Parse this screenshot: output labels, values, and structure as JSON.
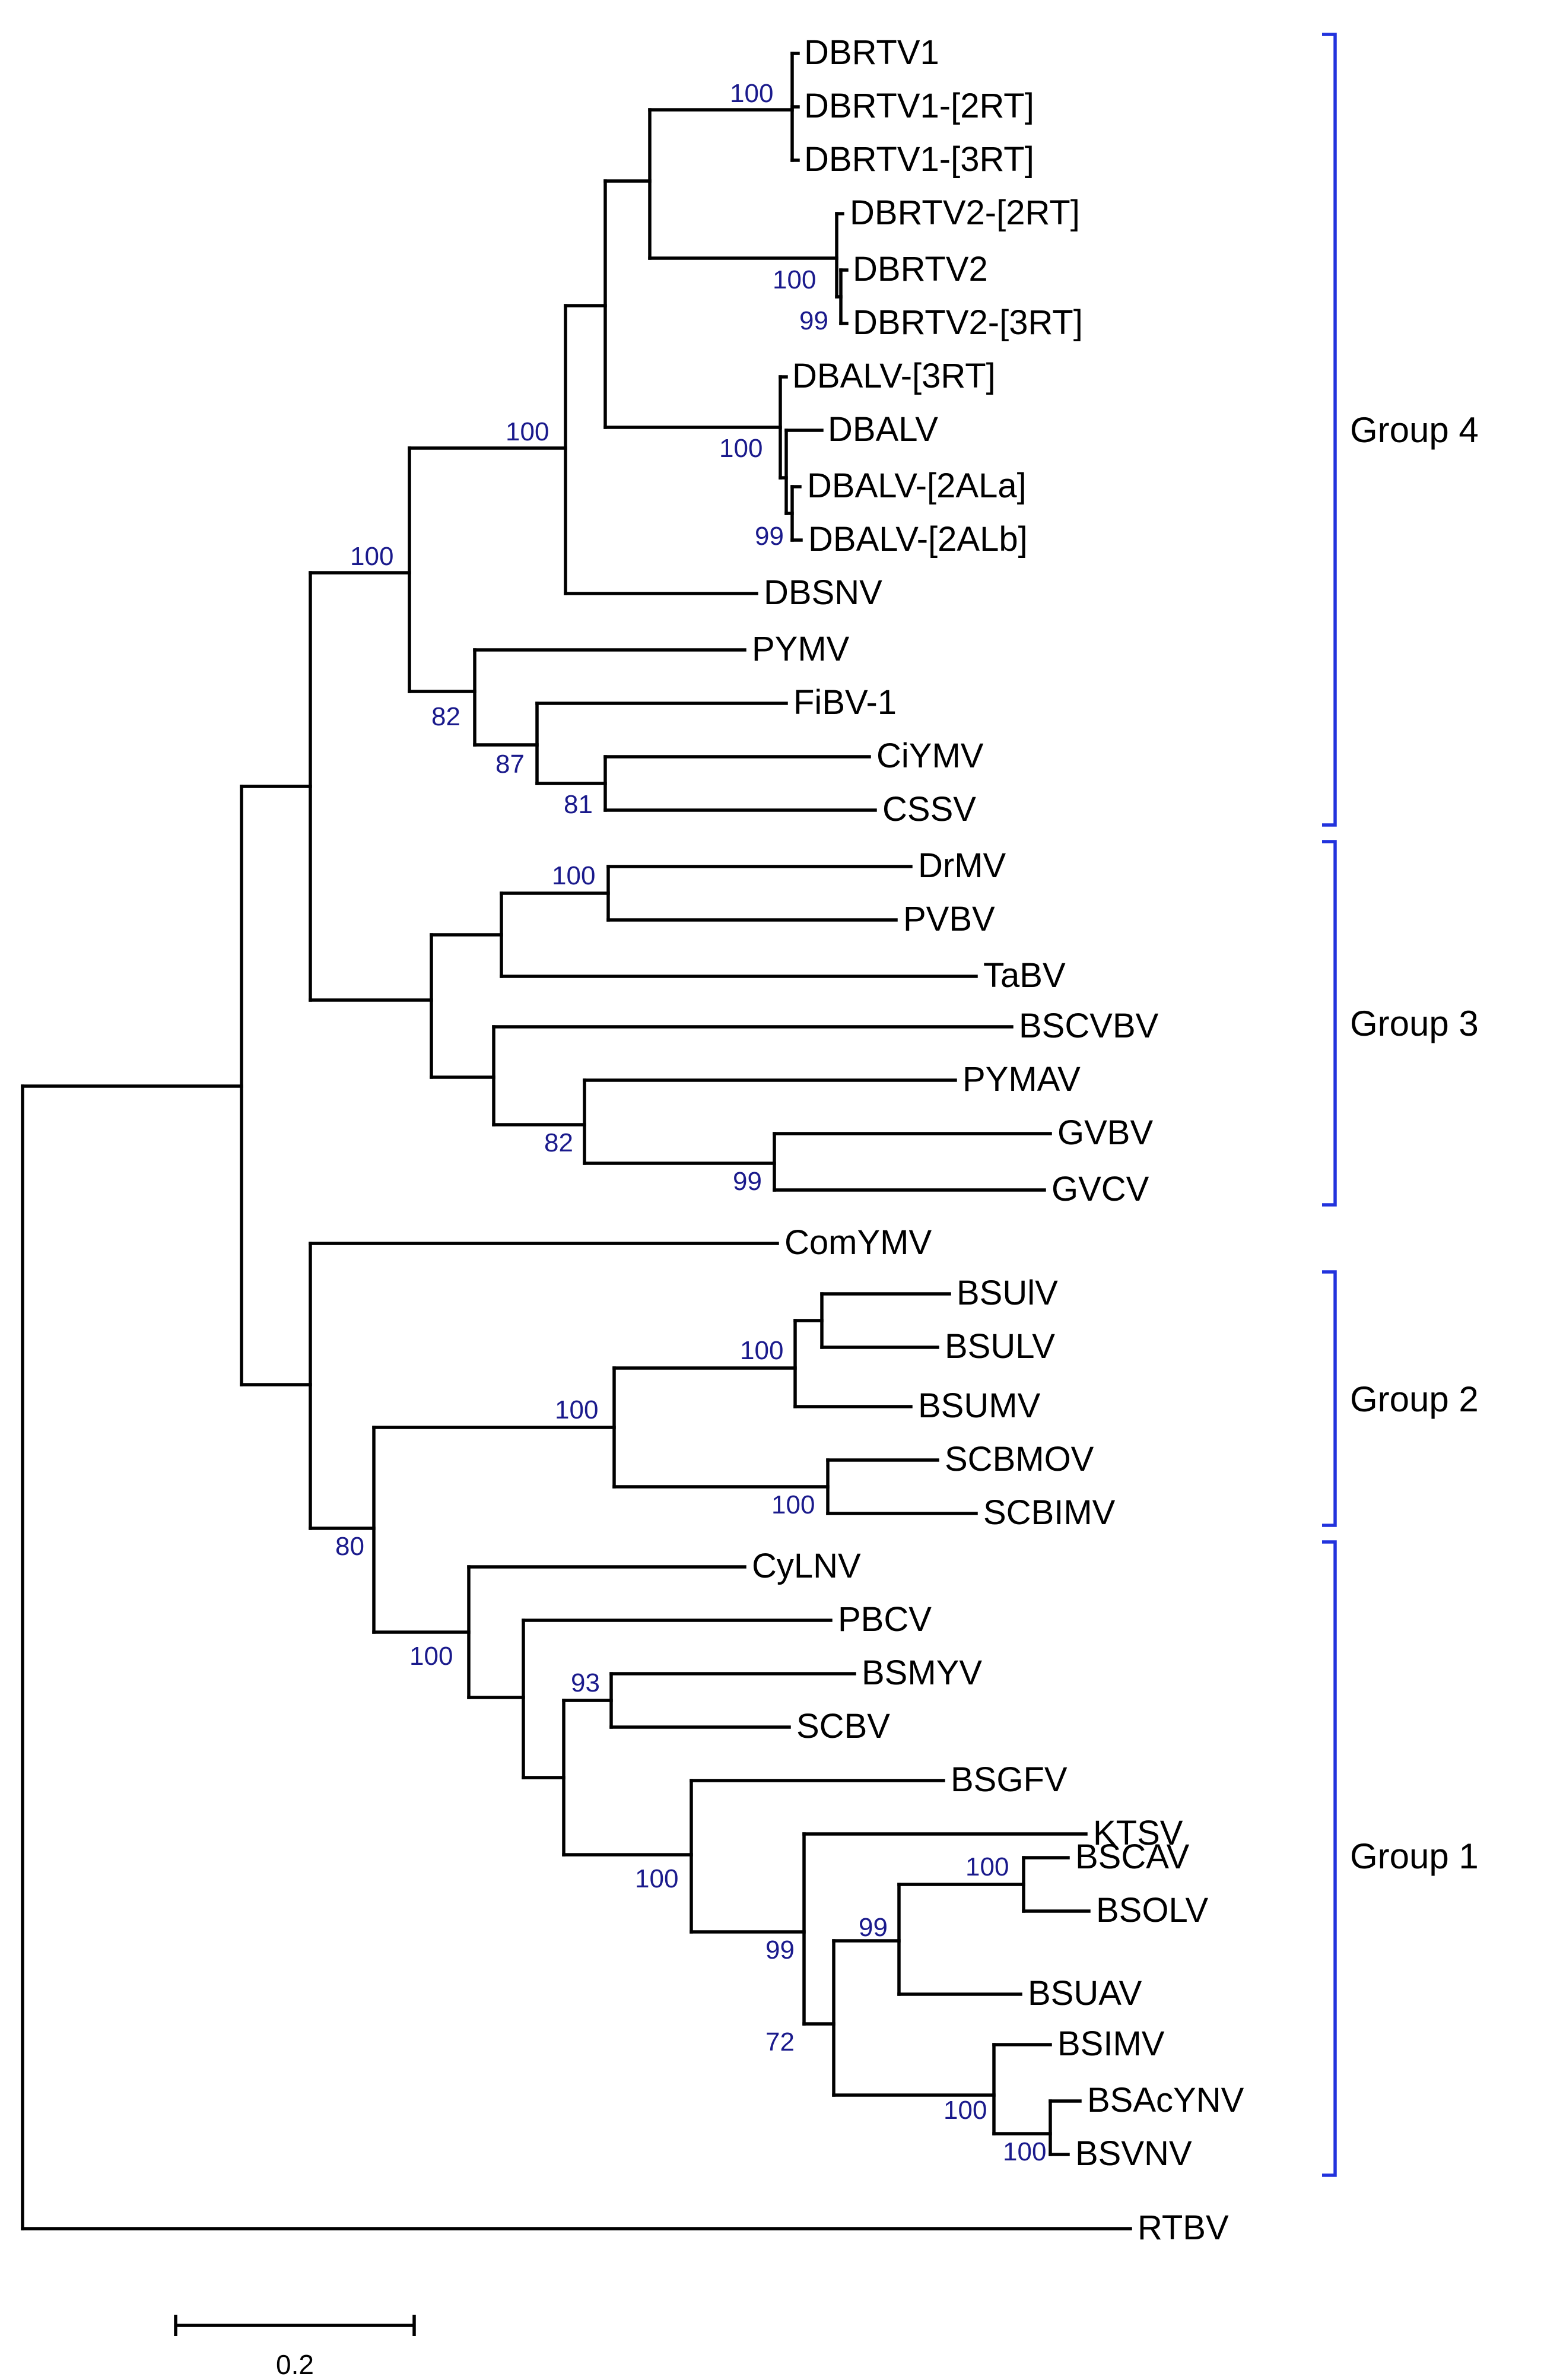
{
  "figure": {
    "type": "phylogenetic-tree",
    "support_color": "#1a1a8c",
    "bracket_color": "#2233dd",
    "line_color": "#000000"
  },
  "leaves": {
    "DBRTV1": "DBRTV1",
    "DBRTV1_2RT": "DBRTV1-[2RT]",
    "DBRTV1_3RT": "DBRTV1-[3RT]",
    "DBRTV2_2RT": "DBRTV2-[2RT]",
    "DBRTV2": "DBRTV2",
    "DBRTV2_3RT": "DBRTV2-[3RT]",
    "DBALV_3RT": "DBALV-[3RT]",
    "DBALV": "DBALV",
    "DBALV_2ALa": "DBALV-[2ALa]",
    "DBALV_2ALb": "DBALV-[2ALb]",
    "DBSNV": "DBSNV",
    "PYMV": "PYMV",
    "FiBV1": "FiBV-1",
    "CiYMV": "CiYMV",
    "CSSV": "CSSV",
    "DrMV": "DrMV",
    "PVBV": "PVBV",
    "TaBV": "TaBV",
    "BSCVBV": "BSCVBV",
    "PYMAV": "PYMAV",
    "GVBV": "GVBV",
    "GVCV": "GVCV",
    "ComYMV": "ComYMV",
    "BSUIV": "BSUlV",
    "BSULV": "BSULV",
    "BSUMV": "BSUMV",
    "SCBMOV": "SCBMOV",
    "SCBIMV": "SCBIMV",
    "CyLNV": "CyLNV",
    "PBCV": "PBCV",
    "BSMYV": "BSMYV",
    "SCBV": "SCBV",
    "BSGFV": "BSGFV",
    "KTSV": "KTSV",
    "BSCAV": "BSCAV",
    "BSOLV": "BSOLV",
    "BSUAV": "BSUAV",
    "BSIMV": "BSIMV",
    "BSAcYNV": "BSAcYNV",
    "BSVNV": "BSVNV",
    "RTBV": "RTBV"
  },
  "support": {
    "dbrtv1": "100",
    "dbrtv2_a": "100",
    "dbrtv2_b": "99",
    "dbalv_a": "100",
    "dbalv_b": "99",
    "dbr_dbal_dbsn": "100",
    "group4": "100",
    "pymv_clade": "82",
    "fibv_clade": "87",
    "ciymv_cssv": "81",
    "drmv_pvbv": "100",
    "pymav_clade": "82",
    "gvbv_gvcv": "99",
    "bsu_clade": "100",
    "bsu_scb": "100",
    "scbmov_scbimv": "100",
    "group12": "80",
    "group1": "100",
    "bsmyv_scbv": "93",
    "bsgfv_clade": "100",
    "ktsv_clade": "99",
    "bscav_bsolv": "100",
    "bsuav_clade": "99",
    "bsimv_clade_a": "72",
    "bsimv_clade_b": "100",
    "bsacynv_bsvnv": "100"
  },
  "groups": {
    "g4": "Group 4",
    "g3": "Group 3",
    "g2": "Group 2",
    "g1": "Group 1"
  },
  "scale_bar": {
    "label": "0.2",
    "value": 0.2
  }
}
